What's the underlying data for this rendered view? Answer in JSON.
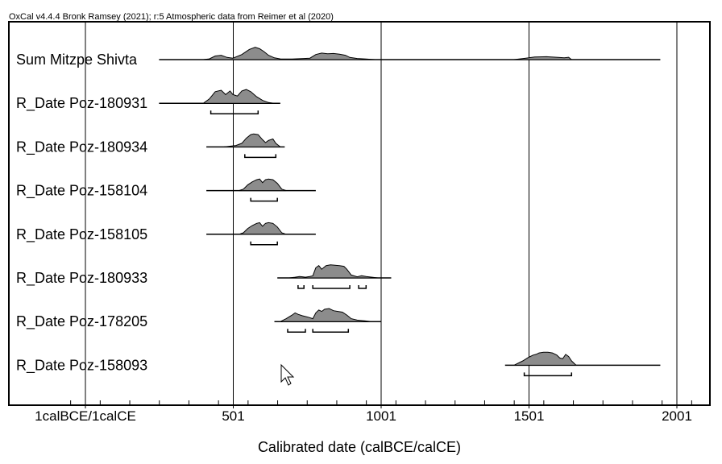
{
  "header": {
    "credit": "OxCal v4.4.4 Bronk Ramsey (2021); r:5 Atmospheric data from Reimer et al (2020)"
  },
  "chart_data": {
    "type": "multiplot",
    "xlabel": "Calibrated date (calBCE/calCE)",
    "xlim": [
      -200,
      2120
    ],
    "ticks": [
      {
        "value": 1,
        "label": "1calBCE/1calCE"
      },
      {
        "value": 501,
        "label": "501"
      },
      {
        "value": 1001,
        "label": "1001"
      },
      {
        "value": 1501,
        "label": "1501"
      },
      {
        "value": 2001,
        "label": "2001"
      }
    ],
    "rows": [
      {
        "label": "Sum Mitzpe Shivta",
        "line": [
          250,
          1945
        ],
        "dist": [
          [
            400,
            0
          ],
          [
            420,
            0.05
          ],
          [
            440,
            0.25
          ],
          [
            460,
            0.3
          ],
          [
            480,
            0.15
          ],
          [
            500,
            0.1
          ],
          [
            530,
            0.35
          ],
          [
            555,
            0.7
          ],
          [
            575,
            0.85
          ],
          [
            590,
            0.75
          ],
          [
            605,
            0.55
          ],
          [
            620,
            0.3
          ],
          [
            640,
            0.12
          ],
          [
            660,
            0.05
          ],
          [
            700,
            0.04
          ],
          [
            740,
            0.08
          ],
          [
            760,
            0.1
          ],
          [
            780,
            0.35
          ],
          [
            800,
            0.45
          ],
          [
            820,
            0.4
          ],
          [
            840,
            0.42
          ],
          [
            860,
            0.38
          ],
          [
            880,
            0.3
          ],
          [
            895,
            0.15
          ],
          [
            920,
            0.08
          ],
          [
            950,
            0.04
          ],
          [
            980,
            0
          ],
          [
            1000,
            0
          ],
          [
            1450,
            0
          ],
          [
            1490,
            0.1
          ],
          [
            1520,
            0.18
          ],
          [
            1560,
            0.2
          ],
          [
            1600,
            0.15
          ],
          [
            1620,
            0.12
          ],
          [
            1635,
            0.16
          ],
          [
            1645,
            0
          ]
        ],
        "ranges": []
      },
      {
        "label": "R_Date Poz-180931",
        "line": [
          250,
          660
        ],
        "dist": [
          [
            400,
            0
          ],
          [
            420,
            0.3
          ],
          [
            440,
            0.8
          ],
          [
            460,
            0.9
          ],
          [
            475,
            0.6
          ],
          [
            490,
            0.85
          ],
          [
            500,
            0.6
          ],
          [
            515,
            0.5
          ],
          [
            530,
            0.85
          ],
          [
            545,
            0.95
          ],
          [
            560,
            0.8
          ],
          [
            580,
            0.45
          ],
          [
            600,
            0.2
          ],
          [
            620,
            0.05
          ],
          [
            640,
            0
          ]
        ],
        "ranges": [
          [
            425,
            585
          ]
        ]
      },
      {
        "label": "R_Date Poz-180934",
        "line": [
          410,
          675
        ],
        "dist": [
          [
            470,
            0
          ],
          [
            490,
            0.05
          ],
          [
            510,
            0.1
          ],
          [
            530,
            0.25
          ],
          [
            545,
            0.6
          ],
          [
            560,
            0.85
          ],
          [
            570,
            0.9
          ],
          [
            585,
            0.85
          ],
          [
            600,
            0.5
          ],
          [
            610,
            0.3
          ],
          [
            620,
            0.45
          ],
          [
            635,
            0.55
          ],
          [
            645,
            0.25
          ],
          [
            660,
            0
          ]
        ],
        "ranges": [
          [
            540,
            645
          ]
        ]
      },
      {
        "label": "R_Date Poz-158104",
        "line": [
          410,
          780
        ],
        "dist": [
          [
            520,
            0
          ],
          [
            535,
            0.1
          ],
          [
            550,
            0.4
          ],
          [
            565,
            0.6
          ],
          [
            580,
            0.75
          ],
          [
            590,
            0.8
          ],
          [
            600,
            0.55
          ],
          [
            610,
            0.75
          ],
          [
            620,
            0.8
          ],
          [
            635,
            0.75
          ],
          [
            650,
            0.5
          ],
          [
            665,
            0.1
          ],
          [
            680,
            0
          ]
        ],
        "ranges": [
          [
            560,
            650
          ]
        ]
      },
      {
        "label": "R_Date Poz-158105",
        "line": [
          410,
          780
        ],
        "dist": [
          [
            520,
            0
          ],
          [
            535,
            0.1
          ],
          [
            550,
            0.4
          ],
          [
            565,
            0.6
          ],
          [
            580,
            0.75
          ],
          [
            590,
            0.8
          ],
          [
            600,
            0.55
          ],
          [
            610,
            0.75
          ],
          [
            620,
            0.8
          ],
          [
            635,
            0.75
          ],
          [
            650,
            0.5
          ],
          [
            665,
            0.1
          ],
          [
            680,
            0
          ]
        ],
        "ranges": [
          [
            560,
            650
          ]
        ]
      },
      {
        "label": "R_Date Poz-180933",
        "line": [
          650,
          1035
        ],
        "dist": [
          [
            690,
            0
          ],
          [
            710,
            0.05
          ],
          [
            725,
            0.1
          ],
          [
            735,
            0.08
          ],
          [
            745,
            0.05
          ],
          [
            760,
            0.1
          ],
          [
            770,
            0.15
          ],
          [
            780,
            0.7
          ],
          [
            790,
            0.85
          ],
          [
            800,
            0.6
          ],
          [
            815,
            0.85
          ],
          [
            830,
            0.9
          ],
          [
            845,
            0.88
          ],
          [
            860,
            0.85
          ],
          [
            875,
            0.8
          ],
          [
            885,
            0.6
          ],
          [
            900,
            0.2
          ],
          [
            920,
            0.08
          ],
          [
            935,
            0.15
          ],
          [
            950,
            0.1
          ],
          [
            970,
            0.05
          ],
          [
            990,
            0
          ]
        ],
        "ranges": [
          [
            720,
            740
          ],
          [
            770,
            895
          ],
          [
            925,
            950
          ]
        ]
      },
      {
        "label": "R_Date Poz-178205",
        "line": [
          640,
          1000
        ],
        "dist": [
          [
            660,
            0
          ],
          [
            680,
            0.2
          ],
          [
            700,
            0.45
          ],
          [
            710,
            0.6
          ],
          [
            720,
            0.5
          ],
          [
            735,
            0.4
          ],
          [
            755,
            0.3
          ],
          [
            770,
            0.2
          ],
          [
            780,
            0.6
          ],
          [
            790,
            0.8
          ],
          [
            800,
            0.7
          ],
          [
            810,
            0.85
          ],
          [
            825,
            0.9
          ],
          [
            840,
            0.75
          ],
          [
            855,
            0.7
          ],
          [
            870,
            0.65
          ],
          [
            885,
            0.45
          ],
          [
            900,
            0.2
          ],
          [
            920,
            0.1
          ],
          [
            945,
            0.05
          ],
          [
            970,
            0
          ]
        ],
        "ranges": [
          [
            685,
            745
          ],
          [
            770,
            890
          ]
        ]
      },
      {
        "label": "R_Date Poz-158093",
        "line": [
          1420,
          1945
        ],
        "dist": [
          [
            1450,
            0
          ],
          [
            1480,
            0.3
          ],
          [
            1500,
            0.55
          ],
          [
            1515,
            0.7
          ],
          [
            1525,
            0.75
          ],
          [
            1535,
            0.85
          ],
          [
            1550,
            0.9
          ],
          [
            1565,
            0.9
          ],
          [
            1580,
            0.85
          ],
          [
            1595,
            0.7
          ],
          [
            1605,
            0.5
          ],
          [
            1615,
            0.45
          ],
          [
            1625,
            0.75
          ],
          [
            1635,
            0.6
          ],
          [
            1645,
            0.3
          ],
          [
            1660,
            0
          ]
        ],
        "ranges": [
          [
            1485,
            1645
          ]
        ]
      }
    ]
  }
}
